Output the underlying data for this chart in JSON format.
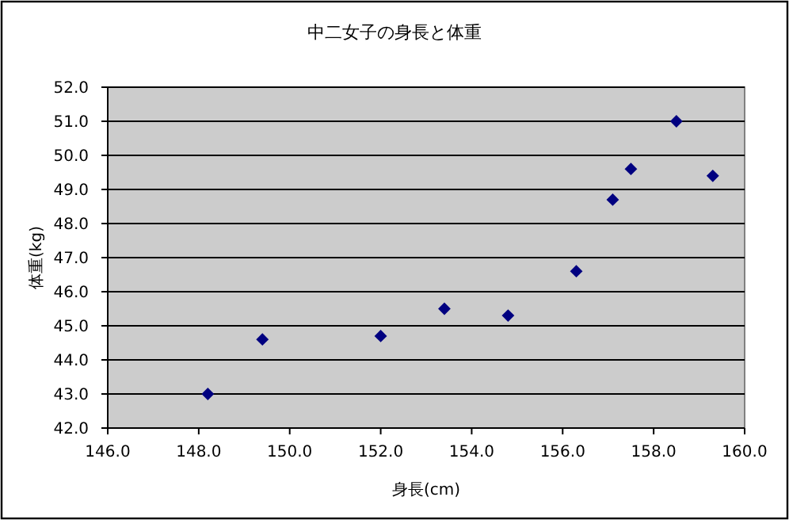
{
  "chart_data": {
    "type": "scatter",
    "title": "中二女子の身長と体重",
    "xlabel": "身長(cm)",
    "ylabel": "体重(kg)",
    "x": [
      148.2,
      149.4,
      152.0,
      153.4,
      154.8,
      156.3,
      157.1,
      157.5,
      158.5,
      159.3
    ],
    "series": [
      {
        "color": "#000080",
        "values": [
          43.0,
          44.6,
          44.7,
          45.5,
          45.3,
          46.6,
          48.7,
          49.6,
          51.0,
          49.4
        ]
      }
    ],
    "xlim": [
      146,
      160
    ],
    "xticks": [
      {
        "value": 146,
        "label": "146.0"
      },
      {
        "value": 148,
        "label": "148.0"
      },
      {
        "value": 150,
        "label": "150.0"
      },
      {
        "value": 152,
        "label": "152.0"
      },
      {
        "value": 154,
        "label": "154.0"
      },
      {
        "value": 156,
        "label": "156.0"
      },
      {
        "value": 158,
        "label": "158.0"
      },
      {
        "value": 160,
        "label": "160.0"
      }
    ],
    "ylim": [
      42,
      52
    ],
    "yticks": [
      {
        "value": 42,
        "label": "42.0"
      },
      {
        "value": 43,
        "label": "43.0"
      },
      {
        "value": 44,
        "label": "44.0"
      },
      {
        "value": 45,
        "label": "45.0"
      },
      {
        "value": 46,
        "label": "46.0"
      },
      {
        "value": 47,
        "label": "47.0"
      },
      {
        "value": 48,
        "label": "48.0"
      },
      {
        "value": 49,
        "label": "49.0"
      },
      {
        "value": 50,
        "label": "50.0"
      },
      {
        "value": 51,
        "label": "51.0"
      },
      {
        "value": 52,
        "label": "52.0"
      }
    ],
    "grid": "y",
    "marker": "diamond"
  }
}
